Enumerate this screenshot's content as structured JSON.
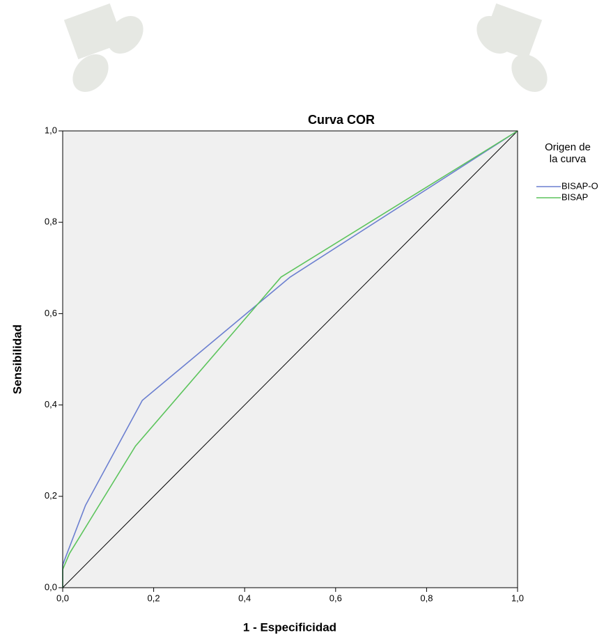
{
  "chart_data": {
    "type": "line",
    "title": "Curva COR",
    "x_label": "1 - Especificidad",
    "y_label": "Sensibilidad",
    "legend_title": "Origen de la curva",
    "legend": "right",
    "grid": false,
    "diagonal": true,
    "background": "#f0f0f0",
    "xlim": [
      0,
      1
    ],
    "ylim": [
      0,
      1
    ],
    "xticks": [
      {
        "value": 0,
        "label": "0,0"
      },
      {
        "value": 0.2,
        "label": "0,2"
      },
      {
        "value": 0.4,
        "label": "0,4"
      },
      {
        "value": 0.6,
        "label": "0,6"
      },
      {
        "value": 0.8,
        "label": "0,8"
      },
      {
        "value": 1,
        "label": "1,0"
      }
    ],
    "yticks": [
      {
        "value": 0,
        "label": "0,0"
      },
      {
        "value": 0.2,
        "label": "0,2"
      },
      {
        "value": 0.4,
        "label": "0,4"
      },
      {
        "value": 0.6,
        "label": "0,6"
      },
      {
        "value": 0.8,
        "label": "0,8"
      },
      {
        "value": 1,
        "label": "1,0"
      }
    ],
    "series": [
      {
        "name": "BISAP-O",
        "color": "#6b7fd0",
        "x": [
          0,
          0,
          0.05,
          0.175,
          0.5,
          1
        ],
        "values": [
          0,
          0.05,
          0.18,
          0.41,
          0.68,
          1
        ]
      },
      {
        "name": "BISAP",
        "color": "#5cc45c",
        "x": [
          0,
          0,
          0.015,
          0.16,
          0.48,
          1
        ],
        "values": [
          0,
          0.04,
          0.075,
          0.31,
          0.68,
          1
        ]
      }
    ]
  }
}
